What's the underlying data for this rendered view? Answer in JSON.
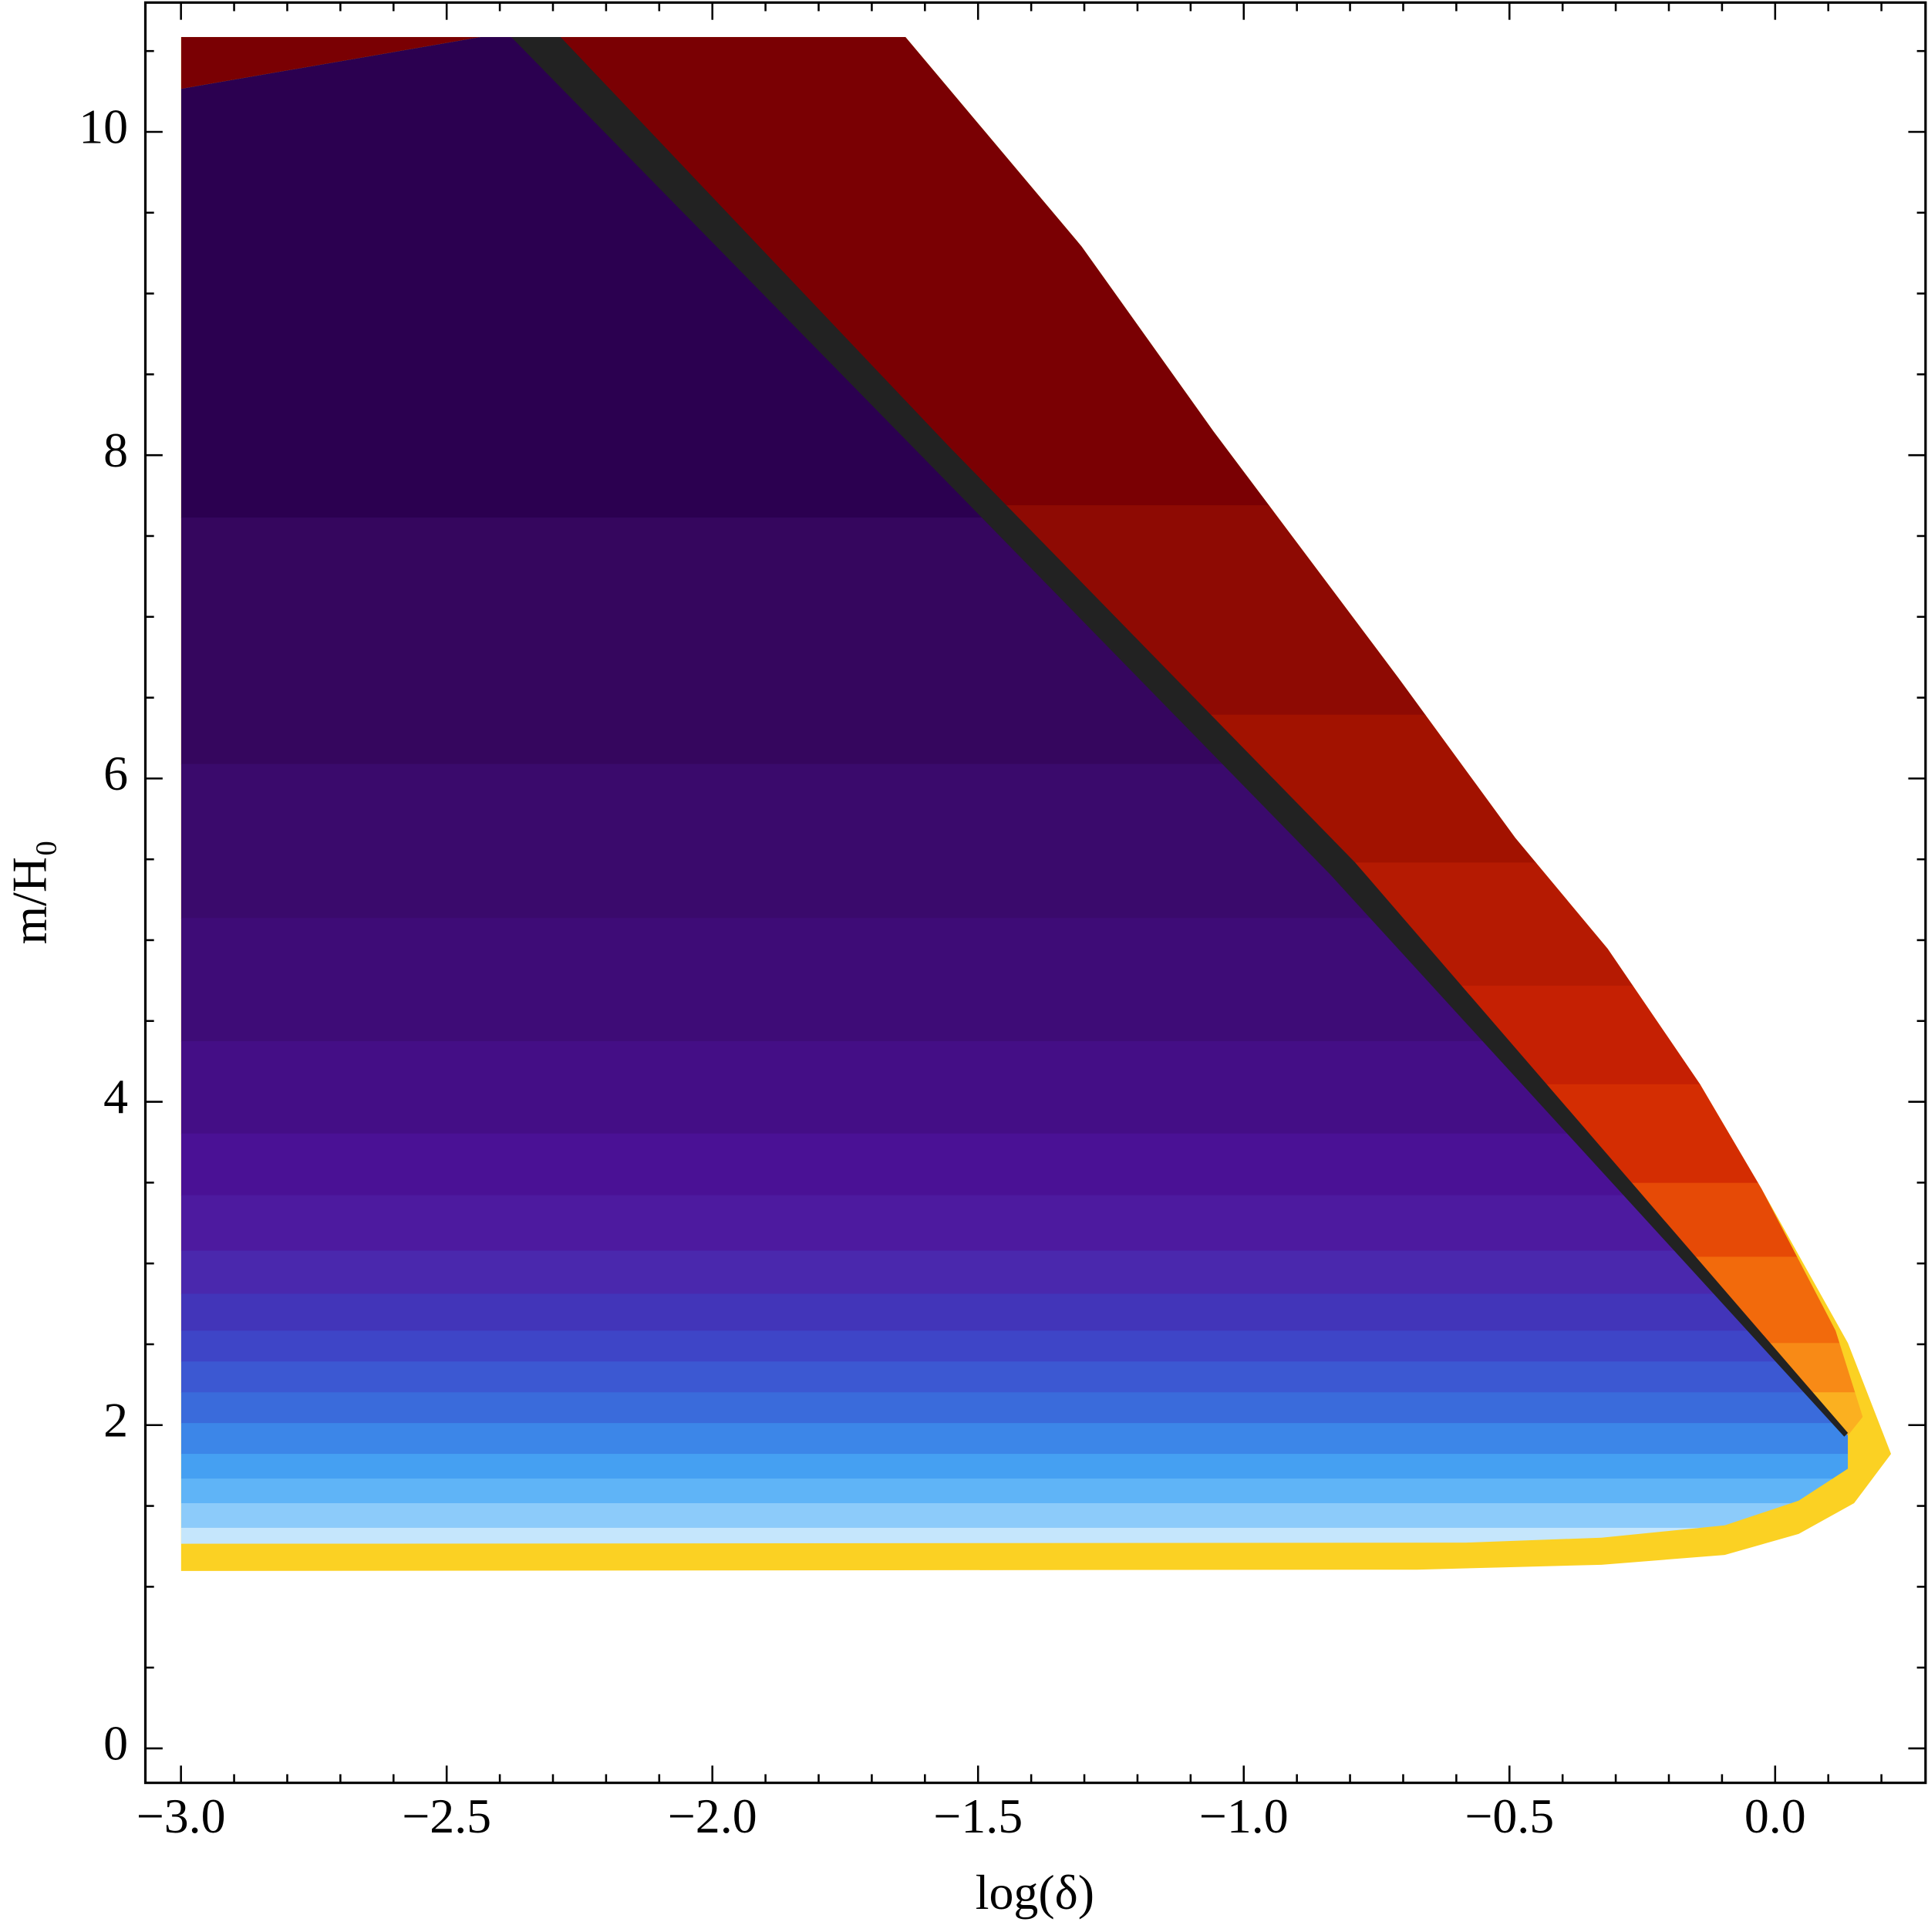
{
  "chart_data": {
    "type": "contour",
    "x_label": "log(δ)",
    "y_label": "m/H₀",
    "xlim": [
      -3.067,
      0.283
    ],
    "ylim": [
      -0.213,
      10.8
    ],
    "xticks": [
      {
        "value": -3.0,
        "label": "−3.0"
      },
      {
        "value": -2.5,
        "label": "−2.5"
      },
      {
        "value": -2.0,
        "label": "−2.0"
      },
      {
        "value": -1.5,
        "label": "−1.5"
      },
      {
        "value": -1.0,
        "label": "−1.0"
      },
      {
        "value": -0.5,
        "label": "−0.5"
      },
      {
        "value": 0.0,
        "label": "0.0"
      }
    ],
    "yticks": [
      0,
      2,
      4,
      6,
      8,
      10
    ],
    "xminorticks": [
      -2.9,
      -2.8,
      -2.7,
      -2.6,
      -2.4,
      -2.3,
      -2.2,
      -2.1,
      -1.9,
      -1.8,
      -1.7,
      -1.6,
      -1.4,
      -1.3,
      -1.2,
      -1.1,
      -0.9,
      -0.8,
      -0.7,
      -0.6,
      -0.4,
      -0.3,
      -0.2,
      -0.1,
      0.1,
      0.2
    ],
    "yminorticks": [
      0.5,
      1,
      1.5,
      2.5,
      3,
      3.5,
      4.5,
      5,
      5.5,
      6.5,
      7,
      7.5,
      8.5,
      9,
      9.5,
      10.5
    ]
  }
}
